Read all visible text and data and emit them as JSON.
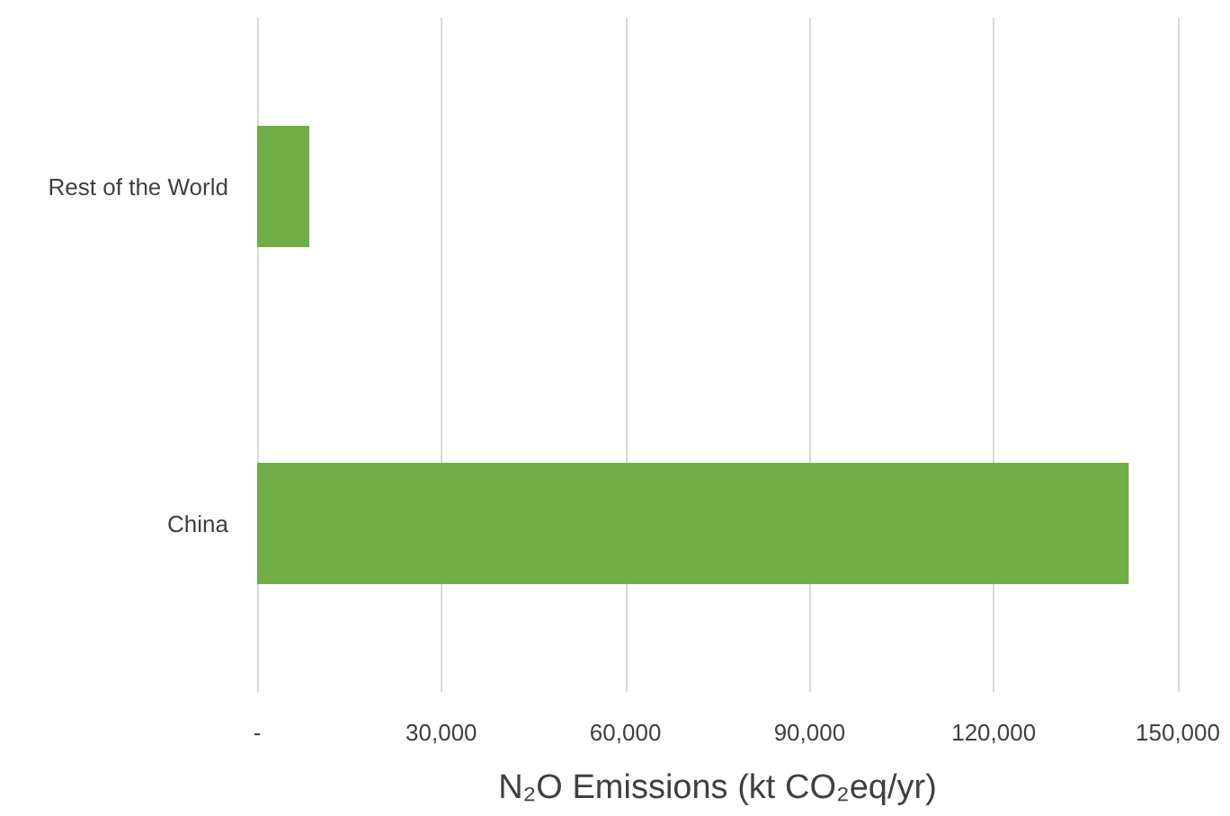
{
  "chart_data": {
    "type": "bar",
    "orientation": "horizontal",
    "categories": [
      "Rest of the World",
      "China"
    ],
    "values": [
      8500,
      142000
    ],
    "color": "#70ad47",
    "xlabel": "N₂O Emissions (kt CO₂eq/yr)",
    "xlim": [
      0,
      150000
    ],
    "xticks": [
      {
        "value": 0,
        "label": "-"
      },
      {
        "value": 30000,
        "label": "30,000"
      },
      {
        "value": 60000,
        "label": "60,000"
      },
      {
        "value": 90000,
        "label": "90,000"
      },
      {
        "value": 120000,
        "label": "120,000"
      },
      {
        "value": 150000,
        "label": "150,000"
      }
    ],
    "grid": "x"
  }
}
